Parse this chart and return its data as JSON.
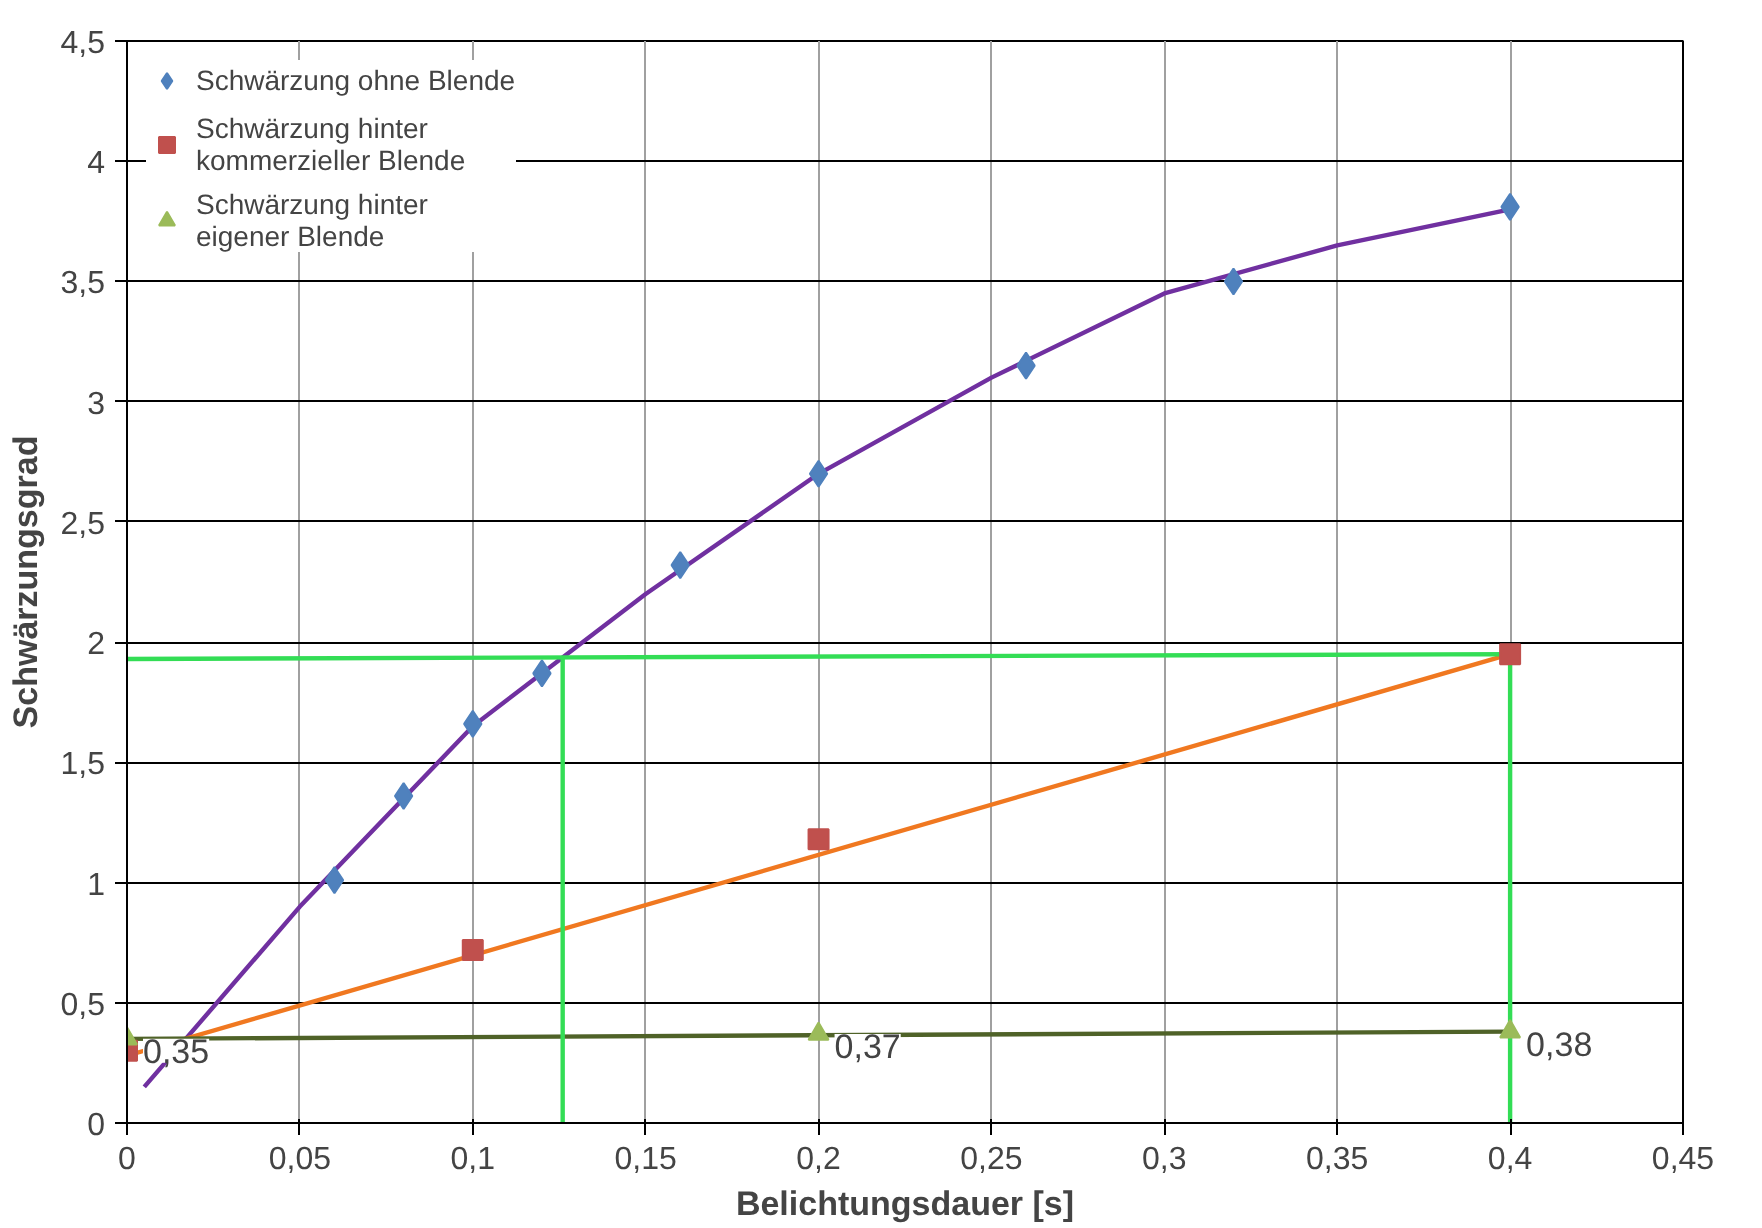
{
  "chart_data": {
    "type": "scatter",
    "xlabel": "Belichtungsdauer [s]",
    "ylabel": "Schwärzungsgrad",
    "xlim": [
      0,
      0.45
    ],
    "ylim": [
      0,
      4.5
    ],
    "xticks": [
      0,
      {
        "value": 0.05,
        "label": "0,05"
      },
      {
        "value": 0.1,
        "label": "0,1"
      },
      {
        "value": 0.15,
        "label": "0,15"
      },
      {
        "value": 0.2,
        "label": "0,2"
      },
      {
        "value": 0.25,
        "label": "0,25"
      },
      {
        "value": 0.3,
        "label": "0,3"
      },
      {
        "value": 0.35,
        "label": "0,35"
      },
      {
        "value": 0.4,
        "label": "0,4"
      },
      {
        "value": 0.45,
        "label": "0,45"
      }
    ],
    "yticks": [
      0,
      {
        "value": 0.5,
        "label": "0,5"
      },
      1,
      {
        "value": 1.5,
        "label": "1,5"
      },
      2,
      {
        "value": 2.5,
        "label": "2,5"
      },
      3,
      {
        "value": 3.5,
        "label": "3,5"
      },
      4,
      {
        "value": 4.5,
        "label": "4,5"
      }
    ],
    "grid": true,
    "legend": "top left",
    "series": [
      {
        "type": "line",
        "color": "#7030a0",
        "x": [
          0.005,
          0.05,
          0.1,
          0.15,
          0.2,
          0.25,
          0.3,
          0.35,
          0.4
        ],
        "values": [
          0.15,
          0.9,
          1.65,
          2.2,
          2.7,
          3.1,
          3.45,
          3.65,
          3.8
        ]
      },
      {
        "type": "line",
        "color": "#f07820",
        "x": [
          0,
          0.4
        ],
        "values": [
          0.28,
          1.95
        ]
      },
      {
        "type": "line",
        "color": "#4f6228",
        "x": [
          0,
          0.4
        ],
        "values": [
          0.35,
          0.38
        ]
      },
      {
        "type": "line",
        "color": "#33dd55",
        "x": [
          0,
          0.4,
          0.4
        ],
        "values": [
          1.93,
          1.95,
          0
        ]
      },
      {
        "type": "line",
        "color": "#33dd55",
        "x": [
          0.126,
          0.126
        ],
        "values": [
          0,
          1.93
        ]
      },
      {
        "name": "Schwärzung ohne Blende",
        "marker": "diamond",
        "color": "#4f81bd",
        "x": [
          0.06,
          0.08,
          0.1,
          0.12,
          0.16,
          0.2,
          0.26,
          0.32,
          0.4
        ],
        "values": [
          1.01,
          1.36,
          1.66,
          1.87,
          2.32,
          2.7,
          3.15,
          3.5,
          3.81
        ]
      },
      {
        "name": "Schwärzung hinter kommerzieller Blende",
        "marker": "square",
        "color": "#c0504d",
        "x": [
          0,
          0.1,
          0.2,
          0.4
        ],
        "values": [
          0.3,
          0.72,
          1.18,
          1.95
        ]
      },
      {
        "name": "Schwärzung hinter eigener Blende",
        "marker": "triangle",
        "color": "#9bbb59",
        "x": [
          0,
          0.2,
          0.4
        ],
        "values": [
          0.35,
          0.37,
          0.38
        ],
        "value_labels": [
          "0,35",
          "0,37",
          "0,38"
        ]
      }
    ]
  }
}
